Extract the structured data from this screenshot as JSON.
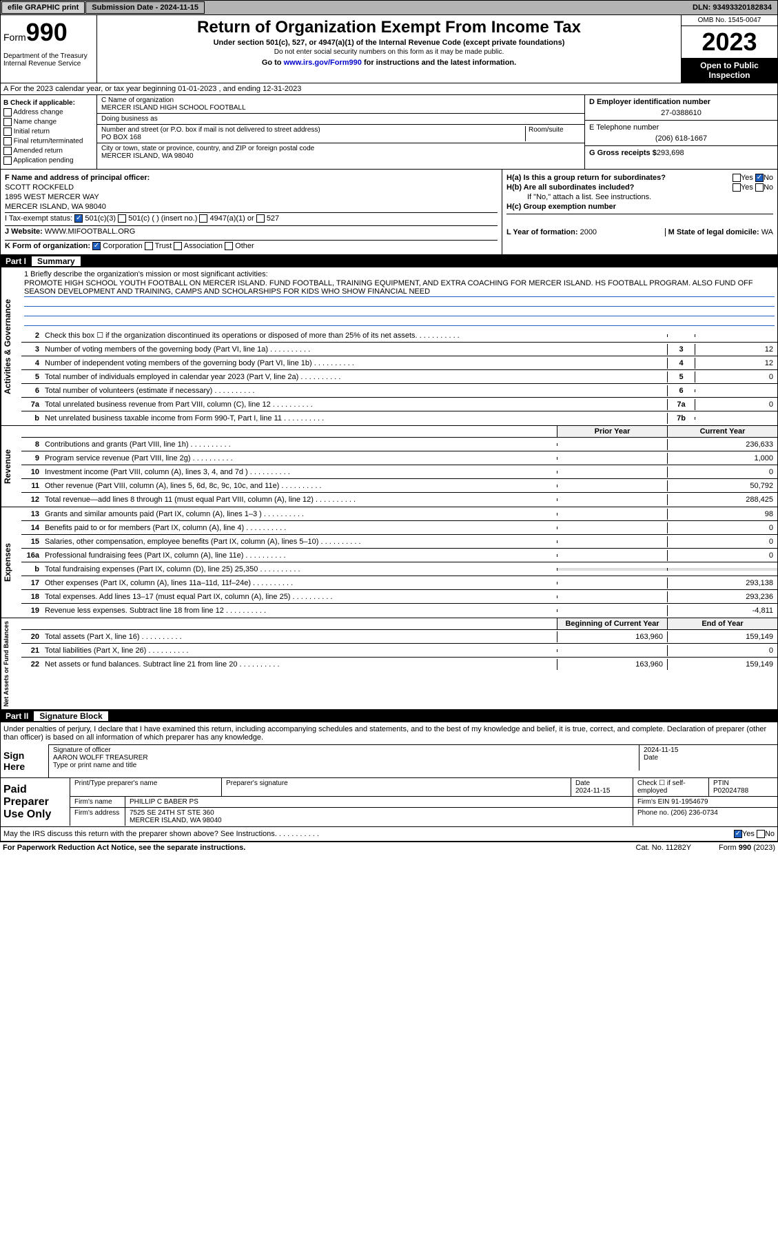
{
  "topbar": {
    "efile": "efile GRAPHIC print",
    "sub_label": "Submission Date - 2024-11-15",
    "dln": "DLN: 93493320182834"
  },
  "header": {
    "form": "Form",
    "num": "990",
    "dept": "Department of the Treasury Internal Revenue Service",
    "title": "Return of Organization Exempt From Income Tax",
    "sub1": "Under section 501(c), 527, or 4947(a)(1) of the Internal Revenue Code (except private foundations)",
    "sub2": "Do not enter social security numbers on this form as it may be made public.",
    "sub3": "Go to www.irs.gov/Form990 for instructions and the latest information.",
    "link": "www.irs.gov/Form990",
    "omb": "OMB No. 1545-0047",
    "year": "2023",
    "open": "Open to Public Inspection"
  },
  "row_a": "A For the 2023 calendar year, or tax year beginning 01-01-2023   , and ending 12-31-2023",
  "col_b": {
    "title": "B Check if applicable:",
    "items": [
      "Address change",
      "Name change",
      "Initial return",
      "Final return/terminated",
      "Amended return",
      "Application pending"
    ]
  },
  "col_c": {
    "name_lbl": "C Name of organization",
    "name": "MERCER ISLAND HIGH SCHOOL FOOTBALL",
    "dba_lbl": "Doing business as",
    "dba": "",
    "addr_lbl": "Number and street (or P.O. box if mail is not delivered to street address)",
    "room_lbl": "Room/suite",
    "addr": "PO BOX 168",
    "city_lbl": "City or town, state or province, country, and ZIP or foreign postal code",
    "city": "MERCER ISLAND, WA  98040"
  },
  "col_d": {
    "ein_lbl": "D Employer identification number",
    "ein": "27-0388610",
    "tel_lbl": "E Telephone number",
    "tel": "(206) 618-1667",
    "gross_lbl": "G Gross receipts $",
    "gross": "293,698"
  },
  "sec_f": {
    "f_lbl": "F Name and address of principal officer:",
    "f_name": "SCOTT ROCKFELD",
    "f_addr1": "1895 WEST MERCER WAY",
    "f_addr2": "MERCER ISLAND, WA  98040",
    "i_lbl": "I   Tax-exempt status:",
    "i_501c3": "501(c)(3)",
    "i_501c": "501(c) (  ) (insert no.)",
    "i_4947": "4947(a)(1) or",
    "i_527": "527",
    "j_lbl": "J   Website:",
    "j_val": "WWW.MIFOOTBALL.ORG",
    "k_lbl": "K Form of organization:",
    "k_corp": "Corporation",
    "k_trust": "Trust",
    "k_assoc": "Association",
    "k_other": "Other"
  },
  "sec_h": {
    "ha": "H(a)  Is this a group return for subordinates?",
    "hb": "H(b)  Are all subordinates included?",
    "hb_note": "If \"No,\" attach a list. See instructions.",
    "hc": "H(c)  Group exemption number",
    "yes": "Yes",
    "no": "No",
    "l_lbl": "L Year of formation:",
    "l_val": "2000",
    "m_lbl": "M State of legal domicile:",
    "m_val": "WA"
  },
  "part1": {
    "num": "Part I",
    "title": "Summary"
  },
  "mission": {
    "q": "1  Briefly describe the organization's mission or most significant activities:",
    "text": "PROMOTE HIGH SCHOOL YOUTH FOOTBALL ON MERCER ISLAND. FUND FOOTBALL, TRAINING EQUIPMENT, AND EXTRA COACHING FOR MERCER ISLAND. HS FOOTBALL PROGRAM. ALSO FUND OFF SEASON DEVELOPMENT AND TRAINING, CAMPS AND SCHOLARSHIPS FOR KIDS WHO SHOW FINANCIAL NEED"
  },
  "gov_rows": [
    {
      "n": "2",
      "t": "Check this box ☐ if the organization discontinued its operations or disposed of more than 25% of its net assets.",
      "box": "",
      "v": ""
    },
    {
      "n": "3",
      "t": "Number of voting members of the governing body (Part VI, line 1a)",
      "box": "3",
      "v": "12"
    },
    {
      "n": "4",
      "t": "Number of independent voting members of the governing body (Part VI, line 1b)",
      "box": "4",
      "v": "12"
    },
    {
      "n": "5",
      "t": "Total number of individuals employed in calendar year 2023 (Part V, line 2a)",
      "box": "5",
      "v": "0"
    },
    {
      "n": "6",
      "t": "Total number of volunteers (estimate if necessary)",
      "box": "6",
      "v": ""
    },
    {
      "n": "7a",
      "t": "Total unrelated business revenue from Part VIII, column (C), line 12",
      "box": "7a",
      "v": "0"
    },
    {
      "n": "b",
      "t": "Net unrelated business taxable income from Form 990-T, Part I, line 11",
      "box": "7b",
      "v": ""
    }
  ],
  "rev_header": {
    "prior": "Prior Year",
    "current": "Current Year"
  },
  "rev_rows": [
    {
      "n": "8",
      "t": "Contributions and grants (Part VIII, line 1h)",
      "p": "",
      "c": "236,633"
    },
    {
      "n": "9",
      "t": "Program service revenue (Part VIII, line 2g)",
      "p": "",
      "c": "1,000"
    },
    {
      "n": "10",
      "t": "Investment income (Part VIII, column (A), lines 3, 4, and 7d )",
      "p": "",
      "c": "0"
    },
    {
      "n": "11",
      "t": "Other revenue (Part VIII, column (A), lines 5, 6d, 8c, 9c, 10c, and 11e)",
      "p": "",
      "c": "50,792"
    },
    {
      "n": "12",
      "t": "Total revenue—add lines 8 through 11 (must equal Part VIII, column (A), line 12)",
      "p": "",
      "c": "288,425"
    }
  ],
  "exp_rows": [
    {
      "n": "13",
      "t": "Grants and similar amounts paid (Part IX, column (A), lines 1–3 )",
      "p": "",
      "c": "98"
    },
    {
      "n": "14",
      "t": "Benefits paid to or for members (Part IX, column (A), line 4)",
      "p": "",
      "c": "0"
    },
    {
      "n": "15",
      "t": "Salaries, other compensation, employee benefits (Part IX, column (A), lines 5–10)",
      "p": "",
      "c": "0"
    },
    {
      "n": "16a",
      "t": "Professional fundraising fees (Part IX, column (A), line 11e)",
      "p": "",
      "c": "0"
    },
    {
      "n": "b",
      "t": "Total fundraising expenses (Part IX, column (D), line 25) 25,350",
      "p": "—",
      "c": "—"
    },
    {
      "n": "17",
      "t": "Other expenses (Part IX, column (A), lines 11a–11d, 11f–24e)",
      "p": "",
      "c": "293,138"
    },
    {
      "n": "18",
      "t": "Total expenses. Add lines 13–17 (must equal Part IX, column (A), line 25)",
      "p": "",
      "c": "293,236"
    },
    {
      "n": "19",
      "t": "Revenue less expenses. Subtract line 18 from line 12",
      "p": "",
      "c": "-4,811"
    }
  ],
  "net_header": {
    "prior": "Beginning of Current Year",
    "current": "End of Year"
  },
  "net_rows": [
    {
      "n": "20",
      "t": "Total assets (Part X, line 16)",
      "p": "163,960",
      "c": "159,149"
    },
    {
      "n": "21",
      "t": "Total liabilities (Part X, line 26)",
      "p": "",
      "c": "0"
    },
    {
      "n": "22",
      "t": "Net assets or fund balances. Subtract line 21 from line 20",
      "p": "163,960",
      "c": "159,149"
    }
  ],
  "side_labels": {
    "gov": "Activities & Governance",
    "rev": "Revenue",
    "exp": "Expenses",
    "net": "Net Assets or Fund Balances"
  },
  "part2": {
    "num": "Part II",
    "title": "Signature Block"
  },
  "sig": {
    "text": "Under penalties of perjury, I declare that I have examined this return, including accompanying schedules and statements, and to the best of my knowledge and belief, it is true, correct, and complete. Declaration of preparer (other than officer) is based on all information of which preparer has any knowledge.",
    "sign_here": "Sign Here",
    "officer_sig": "Signature of officer",
    "officer_name": "AARON WOLFF TREASURER",
    "officer_lbl": "Type or print name and title",
    "date_lbl": "Date",
    "date": "2024-11-15"
  },
  "prep": {
    "title": "Paid Preparer Use Only",
    "name_lbl": "Print/Type preparer's name",
    "sig_lbl": "Preparer's signature",
    "date_lbl": "Date",
    "date": "2024-11-15",
    "check_lbl": "Check ☐ if self-employed",
    "ptin_lbl": "PTIN",
    "ptin": "P02024788",
    "firm_lbl": "Firm's name",
    "firm": "PHILLIP C BABER PS",
    "ein_lbl": "Firm's EIN",
    "ein": "91-1954679",
    "addr_lbl": "Firm's address",
    "addr": "7525 SE 24TH ST STE 360",
    "city": "MERCER ISLAND, WA  98040",
    "phone_lbl": "Phone no.",
    "phone": "(206) 236-0734",
    "discuss": "May the IRS discuss this return with the preparer shown above? See Instructions."
  },
  "footer": {
    "pra": "For Paperwork Reduction Act Notice, see the separate instructions.",
    "cat": "Cat. No. 11282Y",
    "form": "Form 990 (2023)"
  }
}
